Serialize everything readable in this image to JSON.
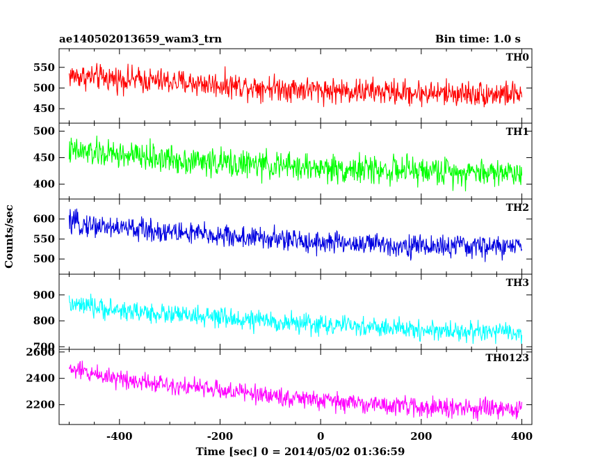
{
  "header": {
    "title": "ae140502013659_wam3_trn",
    "bin_time": "Bin time: 1.0 s"
  },
  "chart_data": {
    "type": "line",
    "title": "ae140502013659_wam3_trn",
    "xlabel": "Time [sec] 0 = 2014/05/02 01:36:59",
    "ylabel": "Counts/sec",
    "xlim": [
      -520,
      420
    ],
    "xticks": [
      -400,
      -200,
      0,
      200,
      400
    ],
    "x_start": -500,
    "x_end": 400,
    "bin_time_s": 1.0,
    "grid": false,
    "panels": [
      {
        "name": "TH0",
        "color": "#ff0000",
        "ylim": [
          415,
          595
        ],
        "yticks": [
          450,
          500,
          550
        ],
        "trend": {
          "x": [
            -500,
            -400,
            -200,
            0,
            200,
            400
          ],
          "y": [
            530,
            522,
            508,
            495,
            488,
            485
          ]
        },
        "noise_amplitude": 28
      },
      {
        "name": "TH1",
        "color": "#00ff00",
        "ylim": [
          372,
          515
        ],
        "yticks": [
          400,
          450,
          500
        ],
        "trend": {
          "x": [
            -500,
            -400,
            -200,
            0,
            200,
            400
          ],
          "y": [
            462,
            455,
            440,
            430,
            425,
            422
          ]
        },
        "noise_amplitude": 24
      },
      {
        "name": "TH2",
        "color": "#0000e0",
        "ylim": [
          462,
          650
        ],
        "yticks": [
          500,
          550,
          600
        ],
        "trend": {
          "x": [
            -500,
            -400,
            -200,
            0,
            200,
            400
          ],
          "y": [
            590,
            578,
            558,
            542,
            532,
            530
          ]
        },
        "noise_amplitude": 26
      },
      {
        "name": "TH3",
        "color": "#00ffff",
        "ylim": [
          690,
          980
        ],
        "yticks": [
          700,
          800,
          900
        ],
        "trend": {
          "x": [
            -500,
            -400,
            -200,
            0,
            200,
            400
          ],
          "y": [
            862,
            840,
            810,
            785,
            765,
            752
          ]
        },
        "noise_amplitude": 35
      },
      {
        "name": "TH0123",
        "color": "#ff00ff",
        "ylim": [
          2050,
          2620
        ],
        "yticks": [
          2200,
          2400,
          2600
        ],
        "trend": {
          "x": [
            -500,
            -400,
            -200,
            0,
            200,
            400
          ],
          "y": [
            2470,
            2400,
            2310,
            2230,
            2180,
            2160
          ]
        },
        "noise_amplitude": 65
      }
    ]
  }
}
